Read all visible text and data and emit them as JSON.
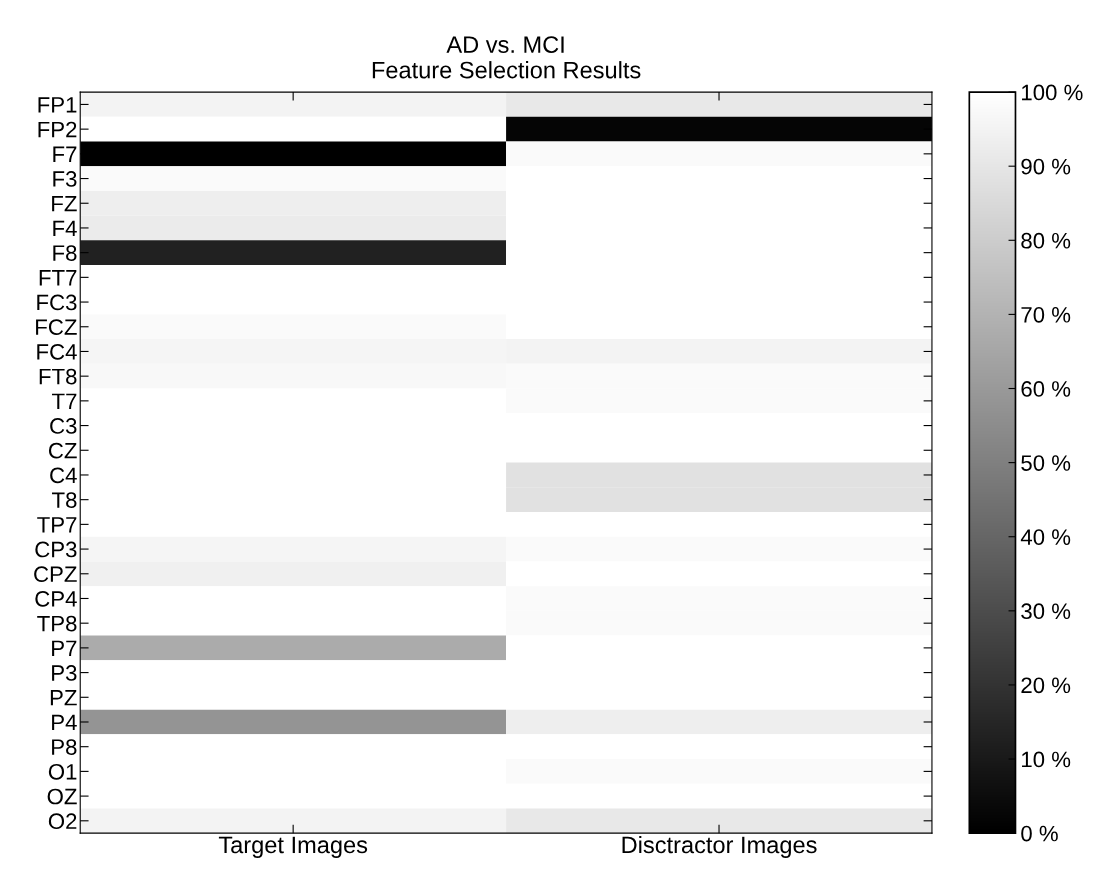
{
  "chart_data": {
    "type": "heatmap",
    "title": "AD vs. MCI\nFeature Selection Results",
    "categories": [
      "Target Images",
      "Disctractor Images"
    ],
    "y_categories": [
      "FP1",
      "FP2",
      "F7",
      "F3",
      "FZ",
      "F4",
      "F8",
      "FT7",
      "FC3",
      "FCZ",
      "FC4",
      "FT8",
      "T7",
      "C3",
      "CZ",
      "C4",
      "T8",
      "TP7",
      "CP3",
      "CPZ",
      "CP4",
      "TP8",
      "P7",
      "P3",
      "PZ",
      "P4",
      "P8",
      "O1",
      "OZ",
      "O2"
    ],
    "cells": [
      [
        95,
        91
      ],
      [
        100,
        2
      ],
      [
        0,
        98
      ],
      [
        98,
        100
      ],
      [
        93,
        100
      ],
      [
        92,
        100
      ],
      [
        13,
        100
      ],
      [
        100,
        100
      ],
      [
        100,
        100
      ],
      [
        98,
        100
      ],
      [
        96,
        95
      ],
      [
        97,
        98
      ],
      [
        100,
        98
      ],
      [
        100,
        100
      ],
      [
        100,
        100
      ],
      [
        100,
        88
      ],
      [
        100,
        88
      ],
      [
        100,
        100
      ],
      [
        96,
        98
      ],
      [
        94,
        100
      ],
      [
        100,
        98
      ],
      [
        100,
        98
      ],
      [
        67,
        100
      ],
      [
        100,
        100
      ],
      [
        100,
        100
      ],
      [
        58,
        93
      ],
      [
        100,
        100
      ],
      [
        100,
        98
      ],
      [
        100,
        100
      ],
      [
        95,
        91
      ]
    ],
    "clim": [
      0,
      100
    ],
    "cticks": [
      {
        "value": 0,
        "label": "0 %"
      },
      {
        "value": 10,
        "label": "10 %"
      },
      {
        "value": 20,
        "label": "20 %"
      },
      {
        "value": 30,
        "label": "30 %"
      },
      {
        "value": 40,
        "label": "40 %"
      },
      {
        "value": 50,
        "label": "50 %"
      },
      {
        "value": 60,
        "label": "60 %"
      },
      {
        "value": 70,
        "label": "70 %"
      },
      {
        "value": 80,
        "label": "80 %"
      },
      {
        "value": 90,
        "label": "90 %"
      },
      {
        "value": 100,
        "label": "100 %"
      }
    ],
    "grid": false,
    "legend": false
  }
}
